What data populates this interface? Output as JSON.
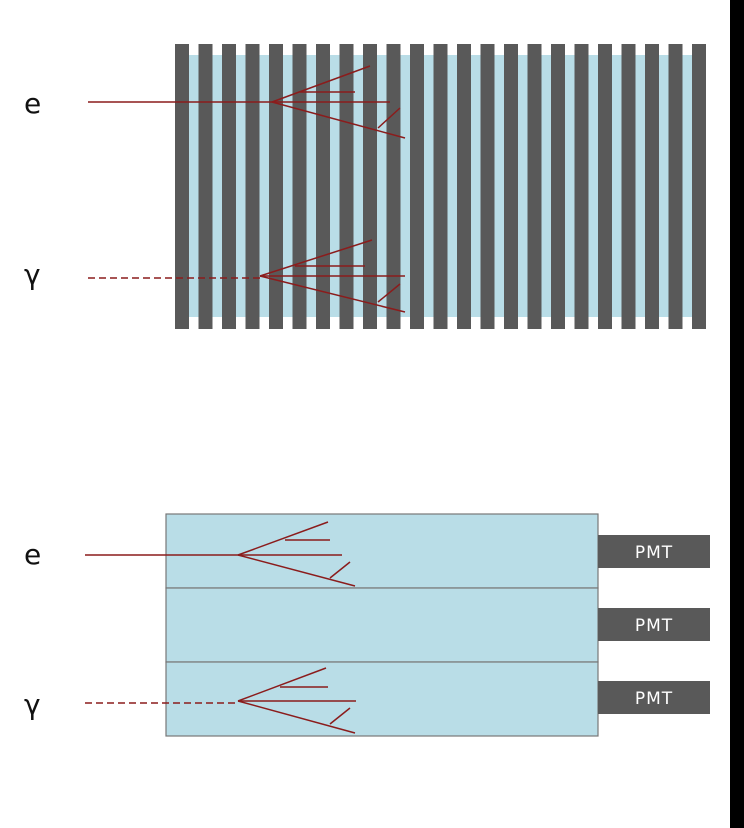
{
  "colors": {
    "absorber": "#595959",
    "scintillator": "#b9dde7",
    "track": "#8b1c1c",
    "pmt": "#595959",
    "block_border": "#777777",
    "edge": "#000000"
  },
  "sampling_calorimeter": {
    "absorber_plate_count": 23,
    "particles": [
      {
        "symbol": "e",
        "track": "solid"
      },
      {
        "symbol": "γ",
        "track": "dashed"
      }
    ]
  },
  "homogeneous_calorimeter": {
    "blocks": [
      {
        "pmt_label": "PMT",
        "particle": {
          "symbol": "e",
          "track": "solid"
        }
      },
      {
        "pmt_label": "PMT",
        "particle": null
      },
      {
        "pmt_label": "PMT",
        "particle": {
          "symbol": "γ",
          "track": "dashed"
        }
      }
    ]
  }
}
